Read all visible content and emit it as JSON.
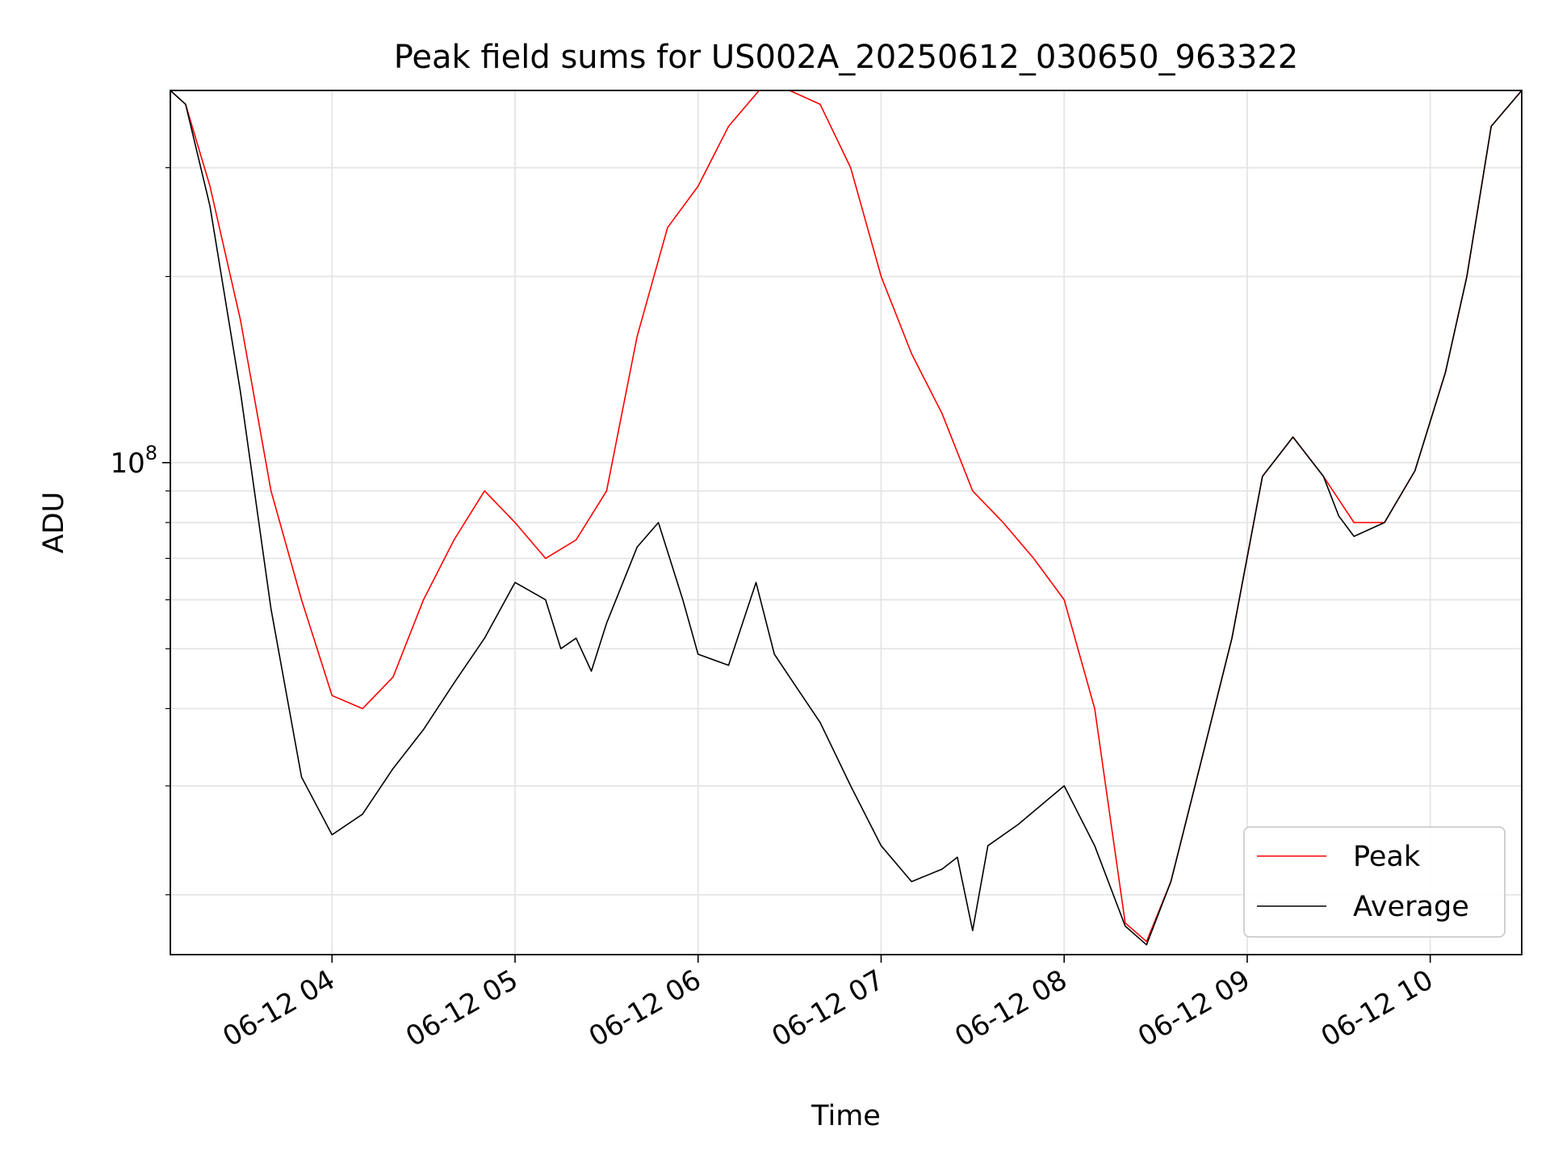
{
  "chart_data": {
    "type": "line",
    "title": "Peak field sums for US002A_20250612_030650_963322",
    "xlabel": "Time",
    "ylabel": "ADU",
    "y_scale": "log",
    "ylim": [
      16000000,
      400000000
    ],
    "xlim": [
      "2025-06-12 03:07",
      "2025-06-12 10:30"
    ],
    "x_ticks": [
      "06-12 04",
      "06-12 05",
      "06-12 06",
      "06-12 07",
      "06-12 08",
      "06-12 09",
      "06-12 10"
    ],
    "y_ticks": [
      {
        "base": "10",
        "exp": "8",
        "value": 100000000
      }
    ],
    "grid": true,
    "legend_position": "lower-right",
    "colors": {
      "peak": "#ff0000",
      "average": "#000000",
      "grid": "#e5e5e5"
    },
    "series": [
      {
        "name": "Average",
        "x": [
          "2025-06-12 03:07",
          "2025-06-12 03:12",
          "2025-06-12 03:20",
          "2025-06-12 03:30",
          "2025-06-12 03:40",
          "2025-06-12 03:50",
          "2025-06-12 04:00",
          "2025-06-12 04:10",
          "2025-06-12 04:20",
          "2025-06-12 04:30",
          "2025-06-12 04:40",
          "2025-06-12 04:50",
          "2025-06-12 05:00",
          "2025-06-12 05:10",
          "2025-06-12 05:15",
          "2025-06-12 05:20",
          "2025-06-12 05:25",
          "2025-06-12 05:30",
          "2025-06-12 05:40",
          "2025-06-12 05:47",
          "2025-06-12 05:55",
          "2025-06-12 06:00",
          "2025-06-12 06:10",
          "2025-06-12 06:19",
          "2025-06-12 06:25",
          "2025-06-12 06:30",
          "2025-06-12 06:40",
          "2025-06-12 06:50",
          "2025-06-12 07:00",
          "2025-06-12 07:10",
          "2025-06-12 07:20",
          "2025-06-12 07:25",
          "2025-06-12 07:30",
          "2025-06-12 07:35",
          "2025-06-12 07:45",
          "2025-06-12 08:00",
          "2025-06-12 08:10",
          "2025-06-12 08:20",
          "2025-06-12 08:27",
          "2025-06-12 08:35",
          "2025-06-12 08:45",
          "2025-06-12 08:55",
          "2025-06-12 09:05",
          "2025-06-12 09:15",
          "2025-06-12 09:25",
          "2025-06-12 09:30",
          "2025-06-12 09:35",
          "2025-06-12 09:45",
          "2025-06-12 09:55",
          "2025-06-12 10:05",
          "2025-06-12 10:12",
          "2025-06-12 10:20",
          "2025-06-12 10:30"
        ],
        "y": [
          400000000,
          380000000,
          260000000,
          130000000,
          58000000,
          31000000,
          25000000,
          27000000,
          32000000,
          37000000,
          44000000,
          52000000,
          64000000,
          60000000,
          50000000,
          52000000,
          46000000,
          55000000,
          73000000,
          80000000,
          60000000,
          49000000,
          47000000,
          64000000,
          49000000,
          45000000,
          38000000,
          30000000,
          24000000,
          21000000,
          22000000,
          23000000,
          17500000,
          24000000,
          26000000,
          30000000,
          24000000,
          17800000,
          16600000,
          21000000,
          33000000,
          52000000,
          95000000,
          110000000,
          95000000,
          82000000,
          76000000,
          80000000,
          97000000,
          140000000,
          200000000,
          350000000,
          400000000
        ]
      },
      {
        "name": "Peak",
        "x": [
          "2025-06-12 03:07",
          "2025-06-12 03:12",
          "2025-06-12 03:20",
          "2025-06-12 03:30",
          "2025-06-12 03:40",
          "2025-06-12 03:50",
          "2025-06-12 04:00",
          "2025-06-12 04:10",
          "2025-06-12 04:20",
          "2025-06-12 04:30",
          "2025-06-12 04:40",
          "2025-06-12 04:50",
          "2025-06-12 05:00",
          "2025-06-12 05:10",
          "2025-06-12 05:20",
          "2025-06-12 05:30",
          "2025-06-12 05:40",
          "2025-06-12 05:50",
          "2025-06-12 06:00",
          "2025-06-12 06:10",
          "2025-06-12 06:20",
          "2025-06-12 06:30",
          "2025-06-12 06:40",
          "2025-06-12 06:50",
          "2025-06-12 07:00",
          "2025-06-12 07:10",
          "2025-06-12 07:20",
          "2025-06-12 07:30",
          "2025-06-12 07:40",
          "2025-06-12 07:50",
          "2025-06-12 08:00",
          "2025-06-12 08:10",
          "2025-06-12 08:20",
          "2025-06-12 08:27",
          "2025-06-12 08:35",
          "2025-06-12 08:45",
          "2025-06-12 08:55",
          "2025-06-12 09:05",
          "2025-06-12 09:15",
          "2025-06-12 09:25",
          "2025-06-12 09:35",
          "2025-06-12 09:45",
          "2025-06-12 09:55",
          "2025-06-12 10:05",
          "2025-06-12 10:12",
          "2025-06-12 10:20",
          "2025-06-12 10:30"
        ],
        "y": [
          400000000,
          380000000,
          280000000,
          170000000,
          90000000,
          60000000,
          42000000,
          40000000,
          45000000,
          60000000,
          75000000,
          90000000,
          80000000,
          70000000,
          75000000,
          90000000,
          160000000,
          240000000,
          280000000,
          350000000,
          400000000,
          400000000,
          380000000,
          300000000,
          200000000,
          150000000,
          120000000,
          90000000,
          80000000,
          70000000,
          60000000,
          40000000,
          18000000,
          16800000,
          21000000,
          33000000,
          52000000,
          95000000,
          110000000,
          95000000,
          80000000,
          80000000,
          97000000,
          140000000,
          200000000,
          350000000,
          400000000
        ]
      }
    ]
  }
}
